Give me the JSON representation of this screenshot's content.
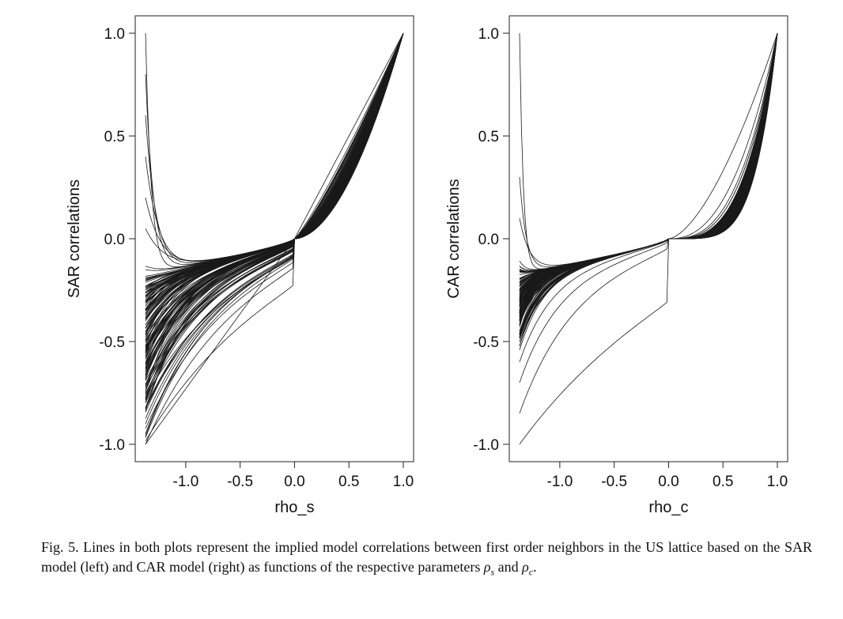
{
  "chart_data": [
    {
      "type": "line",
      "title": "",
      "xlabel": "rho_s",
      "ylabel": "SAR correlations",
      "xlim": [
        -1.37,
        1.0
      ],
      "ylim": [
        -1.0,
        1.0
      ],
      "xticks": [
        -1.0,
        -0.5,
        0.0,
        0.5,
        1.0
      ],
      "xtick_labels": [
        "-1.0",
        "-0.5",
        "0.0",
        "0.5",
        "1.0"
      ],
      "yticks": [
        -1.0,
        -0.5,
        0.0,
        0.5,
        1.0
      ],
      "ytick_labels": [
        "-1.0",
        "-0.5",
        "0.0",
        "0.5",
        "1.0"
      ],
      "grid": false,
      "x_min": -1.37,
      "line_color": "#1a1a1a",
      "series_description": "approximately 150 curves, all passing through (0,0) and (1,1)",
      "series": [
        {
          "left": -1.0,
          "pos_exp": 1.0,
          "neg_sharp": 0.0
        },
        {
          "left": 1.0,
          "pos_exp": 1.8,
          "neg_sharp": 26
        },
        {
          "left": 0.8,
          "pos_exp": 1.5,
          "neg_sharp": 18
        },
        {
          "left": 0.6,
          "pos_exp": 1.4,
          "neg_sharp": 14
        },
        {
          "left": 0.4,
          "pos_exp": 1.3,
          "neg_sharp": 11
        },
        {
          "left": 0.2,
          "pos_exp": 1.2,
          "neg_sharp": 9
        },
        {
          "left": 0.05,
          "pos_exp": 1.15,
          "neg_sharp": 7
        },
        {
          "left": -1.0,
          "pos_exp": 1.25,
          "neg_sharp": 2.0
        },
        {
          "left": -0.9,
          "pos_exp": 1.35,
          "neg_sharp": 2.4
        },
        {
          "left": -0.8,
          "pos_exp": 1.45,
          "neg_sharp": 2.8
        },
        {
          "left": -0.72,
          "pos_exp": 1.5,
          "neg_sharp": 3.2
        },
        {
          "left": -0.65,
          "pos_exp": 1.55,
          "neg_sharp": 3.4
        },
        {
          "left": -0.58,
          "pos_exp": 1.6,
          "neg_sharp": 3.7
        },
        {
          "left": -0.5,
          "pos_exp": 1.62,
          "neg_sharp": 4.0
        },
        {
          "left": -0.42,
          "pos_exp": 1.65,
          "neg_sharp": 4.4
        },
        {
          "left": -0.35,
          "pos_exp": 1.68,
          "neg_sharp": 4.8
        },
        {
          "left": -0.3,
          "pos_exp": 1.7,
          "neg_sharp": 5.2
        },
        {
          "left": -0.25,
          "pos_exp": 1.72,
          "neg_sharp": 5.8
        },
        {
          "left": -0.2,
          "pos_exp": 1.75,
          "neg_sharp": 6.5
        },
        {
          "left": -0.15,
          "pos_exp": 1.78,
          "neg_sharp": 8.0
        }
      ]
    },
    {
      "type": "line",
      "title": "",
      "xlabel": "rho_c",
      "ylabel": "CAR correlations",
      "xlim": [
        -1.37,
        1.0
      ],
      "ylim": [
        -1.0,
        1.0
      ],
      "xticks": [
        -1.0,
        -0.5,
        0.0,
        0.5,
        1.0
      ],
      "xtick_labels": [
        "-1.0",
        "-0.5",
        "0.0",
        "0.5",
        "1.0"
      ],
      "yticks": [
        -1.0,
        -0.5,
        0.0,
        0.5,
        1.0
      ],
      "ytick_labels": [
        "-1.0",
        "-0.5",
        "0.0",
        "0.5",
        "1.0"
      ],
      "grid": false,
      "x_min": -1.37,
      "line_color": "#1a1a1a",
      "series_description": "approximately 150 curves, all passing through (0,0) and near (1,1)",
      "series": [
        {
          "left": -1.0,
          "pos_exp": 1.6,
          "neg_sharp": 1.2
        },
        {
          "left": 1.0,
          "pos_exp": 3.0,
          "neg_sharp": 40
        },
        {
          "left": 0.3,
          "pos_exp": 3.4,
          "neg_sharp": 22
        },
        {
          "left": 0.1,
          "pos_exp": 3.6,
          "neg_sharp": 14
        },
        {
          "left": -0.85,
          "pos_exp": 2.4,
          "neg_sharp": 3.0
        },
        {
          "left": -0.7,
          "pos_exp": 2.8,
          "neg_sharp": 4.0
        },
        {
          "left": -0.6,
          "pos_exp": 3.0,
          "neg_sharp": 5.0
        },
        {
          "left": -0.5,
          "pos_exp": 3.3,
          "neg_sharp": 6.0
        },
        {
          "left": -0.45,
          "pos_exp": 3.5,
          "neg_sharp": 7.0
        },
        {
          "left": -0.4,
          "pos_exp": 3.7,
          "neg_sharp": 8.5
        },
        {
          "left": -0.35,
          "pos_exp": 3.9,
          "neg_sharp": 10
        },
        {
          "left": -0.3,
          "pos_exp": 4.1,
          "neg_sharp": 12
        },
        {
          "left": -0.25,
          "pos_exp": 4.3,
          "neg_sharp": 14
        },
        {
          "left": -0.2,
          "pos_exp": 4.5,
          "neg_sharp": 17
        },
        {
          "left": -0.16,
          "pos_exp": 4.8,
          "neg_sharp": 20
        }
      ]
    }
  ],
  "caption": {
    "prefix": "Fig. 5. Lines in both plots represent the implied model correlations between first order neighbors in the US lattice based on the SAR model (left) and CAR model (right) as functions of the respective parameters ",
    "rho": "ρ",
    "sub_s": "s",
    "and": " and ",
    "sub_c": "c",
    "suffix": "."
  }
}
